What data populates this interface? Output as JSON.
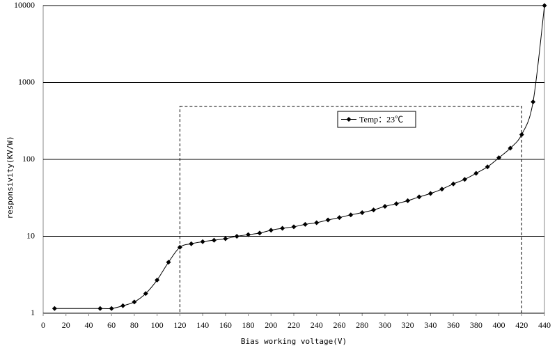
{
  "chart_data": {
    "type": "line",
    "x_label": "Bias working voltage(V)",
    "y_label": "responsivity(KV/W)",
    "log_y": true,
    "grid": true,
    "legend": "upper center",
    "xlim": [
      0,
      440
    ],
    "xticks": [
      0,
      20,
      40,
      60,
      80,
      100,
      120,
      140,
      160,
      180,
      200,
      220,
      240,
      260,
      280,
      300,
      320,
      340,
      360,
      380,
      400,
      420,
      440
    ],
    "ylim": [
      1,
      10000
    ],
    "yticks": [
      1,
      10,
      100,
      1000,
      10000
    ],
    "highlight_box": {
      "x": [
        120,
        420
      ],
      "y": [
        1,
        490
      ]
    },
    "x": [
      10,
      50,
      60,
      70,
      80,
      90,
      100,
      110,
      120,
      130,
      140,
      150,
      160,
      170,
      180,
      190,
      200,
      210,
      220,
      230,
      240,
      250,
      260,
      270,
      280,
      290,
      300,
      310,
      320,
      330,
      340,
      350,
      360,
      370,
      380,
      390,
      400,
      410,
      420,
      430,
      440
    ],
    "series": [
      {
        "name": "Temp：23℃",
        "color": "#000000",
        "values": [
          1.15,
          1.15,
          1.15,
          1.25,
          1.4,
          1.8,
          2.7,
          4.6,
          7.2,
          8.0,
          8.5,
          8.9,
          9.3,
          10.0,
          10.5,
          11.0,
          12.0,
          12.7,
          13.3,
          14.3,
          15.0,
          16.3,
          17.5,
          19.0,
          20.3,
          22.0,
          24.5,
          26.5,
          29.0,
          32.5,
          36.0,
          41.0,
          48.0,
          55.0,
          66.0,
          80.0,
          105,
          140,
          210,
          560,
          10000
        ]
      }
    ]
  }
}
